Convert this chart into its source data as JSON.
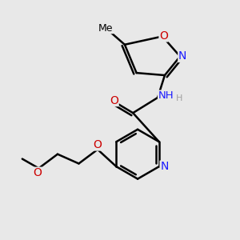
{
  "background_color": "#e8e8e8",
  "bond_color": "#000000",
  "bond_width": 1.8,
  "atom_colors": {
    "C": "#000000",
    "N": "#1a1aff",
    "O": "#cc0000",
    "H": "#808080"
  },
  "font_size": 9.5,
  "fig_width": 3.0,
  "fig_height": 3.0,
  "dpi": 100
}
